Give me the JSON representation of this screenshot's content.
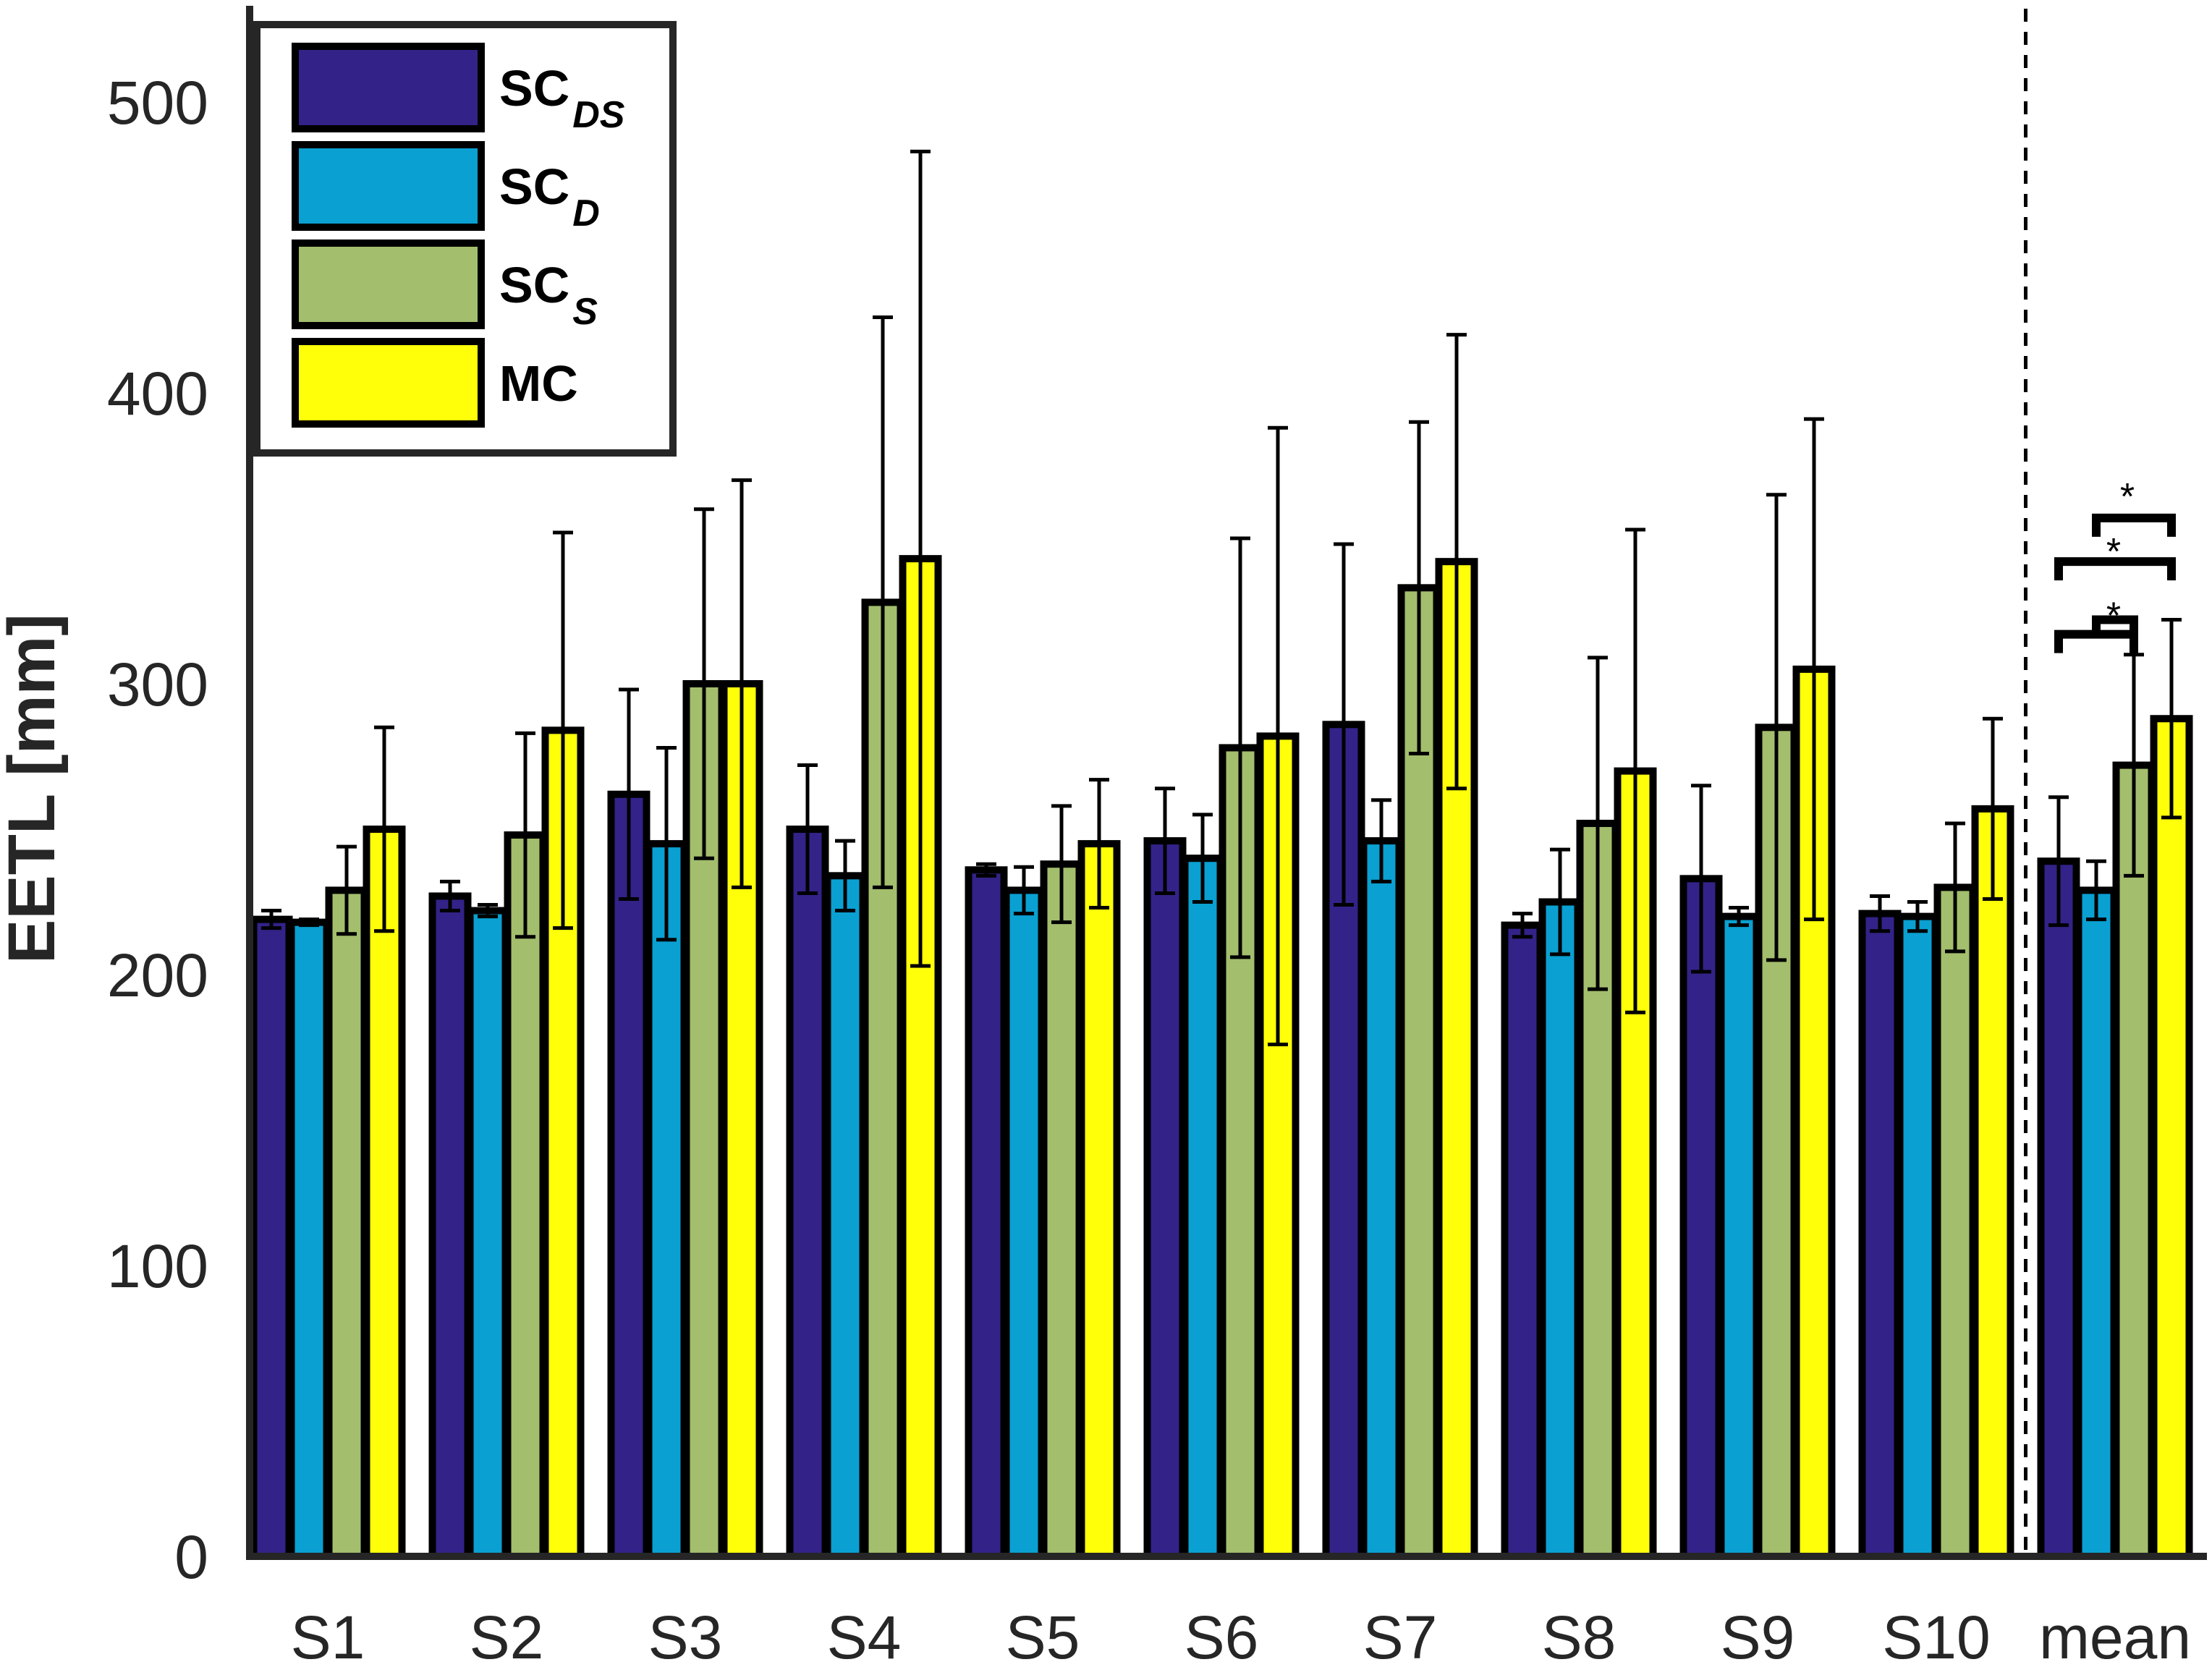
{
  "chart_data": {
    "type": "bar",
    "title": "",
    "xlabel": "",
    "ylabel": "EETL [mm]",
    "ylim": [
      0,
      530
    ],
    "yticks": [
      0,
      100,
      200,
      300,
      400,
      500
    ],
    "categories": [
      "S1",
      "S2",
      "S3",
      "S4",
      "S5",
      "S6",
      "S7",
      "S8",
      "S9",
      "S10",
      "mean"
    ],
    "series": [
      {
        "name": "SC_DS",
        "label_main": "SC",
        "label_sub": "DS",
        "color": "#332288",
        "values": [
          219,
          227,
          262,
          250,
          236,
          246,
          286,
          217,
          233,
          221,
          239
        ],
        "err_upper": [
          3,
          5,
          36,
          22,
          2,
          18,
          62,
          4,
          32,
          6,
          22
        ],
        "err_lower": [
          3,
          5,
          36,
          22,
          2,
          18,
          62,
          4,
          32,
          6,
          22
        ]
      },
      {
        "name": "SC_D",
        "label_main": "SC",
        "label_sub": "D",
        "color": "#0aa0d2",
        "values": [
          218,
          222,
          245,
          234,
          229,
          240,
          246,
          225,
          220,
          220,
          229
        ],
        "err_upper": [
          1,
          2,
          33,
          12,
          8,
          15,
          14,
          18,
          3,
          5,
          10
        ],
        "err_lower": [
          1,
          2,
          33,
          12,
          8,
          15,
          14,
          18,
          3,
          5,
          10
        ]
      },
      {
        "name": "SC_S",
        "label_main": "SC",
        "label_sub": "S",
        "color": "#a3be6d",
        "values": [
          229,
          248,
          300,
          328,
          238,
          278,
          333,
          252,
          285,
          230,
          272
        ],
        "err_upper": [
          15,
          35,
          60,
          98,
          20,
          72,
          57,
          57,
          80,
          22,
          38
        ],
        "err_lower": [
          15,
          35,
          60,
          98,
          20,
          72,
          57,
          57,
          80,
          22,
          38
        ]
      },
      {
        "name": "MC",
        "label_main": "MC",
        "label_sub": "",
        "color": "#ffff0a",
        "values": [
          250,
          284,
          300,
          343,
          245,
          282,
          342,
          270,
          305,
          257,
          288
        ],
        "err_upper": [
          35,
          68,
          70,
          140,
          22,
          106,
          78,
          83,
          86,
          31,
          34
        ],
        "err_lower": [
          35,
          68,
          70,
          140,
          22,
          106,
          78,
          83,
          86,
          31,
          34
        ]
      }
    ],
    "significance": {
      "group": "mean",
      "symbol": "*",
      "pairs": [
        [
          "SC_DS",
          "SC_S"
        ],
        [
          "SC_D",
          "SC_S"
        ],
        [
          "SC_DS",
          "MC"
        ],
        [
          "SC_D",
          "MC"
        ]
      ]
    },
    "separator_before": "mean",
    "legend_position": "top-left"
  }
}
